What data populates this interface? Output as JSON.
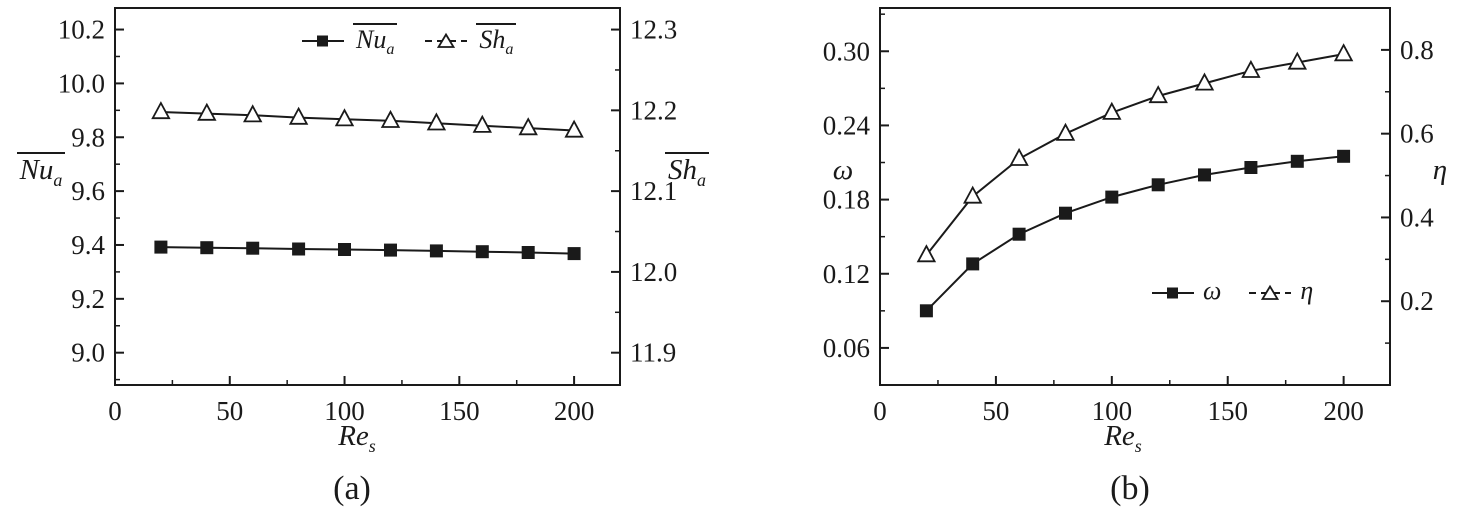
{
  "figure": {
    "background": "#ffffff",
    "line_color": "#1a1a1a",
    "captions": [
      "(a)",
      "(b)"
    ]
  },
  "chart_data": [
    {
      "type": "line",
      "caption": "(a)",
      "xlabel_main": "Re",
      "xlabel_sub": "s",
      "xlim": [
        0,
        220
      ],
      "x_ticks": [
        0,
        50,
        100,
        150,
        200
      ],
      "x_tick_labels": [
        "0",
        "50",
        "100",
        "150",
        "200"
      ],
      "x": [
        20,
        40,
        60,
        80,
        100,
        120,
        140,
        160,
        180,
        200
      ],
      "left_axis": {
        "label_main": "Nu",
        "label_sub": "a",
        "overline": true,
        "lim": [
          8.88,
          10.28
        ],
        "ticks": [
          9.0,
          9.2,
          9.4,
          9.6,
          9.8,
          10.0,
          10.2
        ],
        "tick_labels": [
          "9.0",
          "9.2",
          "9.4",
          "9.6",
          "9.8",
          "10.0",
          "10.2"
        ]
      },
      "right_axis": {
        "label_main": "Sh",
        "label_sub": "a",
        "overline": true,
        "lim": [
          11.86,
          12.3267
        ],
        "ticks": [
          11.9,
          12.0,
          12.1,
          12.2,
          12.3
        ],
        "tick_labels": [
          "11.9",
          "12.0",
          "12.1",
          "12.2",
          "12.3"
        ]
      },
      "series": [
        {
          "name_main": "Nu",
          "name_sub": "a",
          "overline": true,
          "axis": "left",
          "marker": "square",
          "values": [
            9.392,
            9.39,
            9.388,
            9.385,
            9.383,
            9.381,
            9.378,
            9.375,
            9.372,
            9.368
          ]
        },
        {
          "name_main": "Sh",
          "name_sub": "a",
          "overline": true,
          "axis": "right",
          "marker": "triangle",
          "values": [
            12.198,
            12.196,
            12.194,
            12.191,
            12.189,
            12.187,
            12.184,
            12.181,
            12.178,
            12.175
          ]
        }
      ],
      "legend_position": "top-center"
    },
    {
      "type": "line",
      "caption": "(b)",
      "xlabel_main": "Re",
      "xlabel_sub": "s",
      "xlim": [
        0,
        220
      ],
      "x_ticks": [
        0,
        50,
        100,
        150,
        200
      ],
      "x_tick_labels": [
        "0",
        "50",
        "100",
        "150",
        "200"
      ],
      "x": [
        20,
        40,
        60,
        80,
        100,
        120,
        140,
        160,
        180,
        200
      ],
      "left_axis": {
        "label_main": "ω",
        "label_sub": "",
        "overline": false,
        "lim": [
          0.03,
          0.335
        ],
        "ticks": [
          0.06,
          0.12,
          0.18,
          0.24,
          0.3
        ],
        "tick_labels": [
          "0.06",
          "0.12",
          "0.18",
          "0.24",
          "0.30"
        ]
      },
      "right_axis": {
        "label_main": "η",
        "label_sub": "",
        "overline": false,
        "lim": [
          0,
          0.9
        ],
        "ticks": [
          0.2,
          0.4,
          0.6,
          0.8
        ],
        "tick_labels": [
          "0.2",
          "0.4",
          "0.6",
          "0.8"
        ]
      },
      "series": [
        {
          "name_main": "ω",
          "name_sub": "",
          "overline": false,
          "axis": "left",
          "marker": "square",
          "values": [
            0.09,
            0.128,
            0.152,
            0.169,
            0.182,
            0.192,
            0.2,
            0.206,
            0.211,
            0.215
          ]
        },
        {
          "name_main": "η",
          "name_sub": "",
          "overline": false,
          "axis": "right",
          "marker": "triangle",
          "values": [
            0.31,
            0.45,
            0.54,
            0.6,
            0.65,
            0.69,
            0.72,
            0.75,
            0.77,
            0.79
          ]
        }
      ],
      "legend_position": "bottom-right"
    }
  ]
}
